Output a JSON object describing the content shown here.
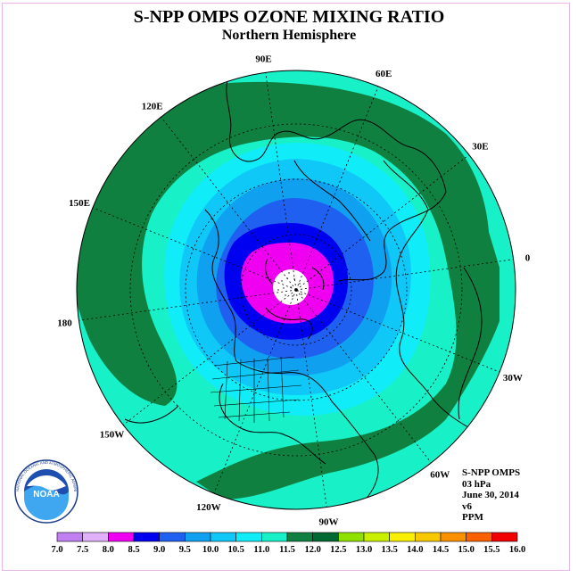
{
  "title": "S-NPP OMPS OZONE MIXING RATIO",
  "subtitle": "Northern Hemisphere",
  "longitude_labels": [
    {
      "text": "90E",
      "lon": 90
    },
    {
      "text": "60E",
      "lon": 60
    },
    {
      "text": "30E",
      "lon": 30
    },
    {
      "text": "0",
      "lon": 0
    },
    {
      "text": "30W",
      "lon": -30
    },
    {
      "text": "60W",
      "lon": -60
    },
    {
      "text": "90W",
      "lon": -90
    },
    {
      "text": "120W",
      "lon": -120
    },
    {
      "text": "150W",
      "lon": -150
    },
    {
      "text": "180",
      "lon": 180
    },
    {
      "text": "150E",
      "lon": 150
    },
    {
      "text": "120E",
      "lon": 120
    }
  ],
  "info": {
    "instrument": "S-NPP OMPS",
    "level": "03 hPa",
    "date": "June 30, 2014",
    "version": "v6",
    "units": "PPM"
  },
  "logo": {
    "text": "NOAA",
    "ring_text": "NATIONAL OCEANIC AND ATMOSPHERIC ADMINISTRATION · U.S. DEPARTMENT OF COMMERCE"
  },
  "colors": {
    "bin_7_0": "#c080f0",
    "bin_7_5": "#e0b0f8",
    "bin_8_0": "#f000f0",
    "bin_8_5": "#0000f0",
    "bin_9_0": "#2060f0",
    "bin_9_5": "#10a0f0",
    "bin_10_0": "#10c8f8",
    "bin_10_5": "#10ecf8",
    "bin_11_0": "#18f0c8",
    "bin_11_5": "#108040",
    "bin_12_0": "#006830",
    "bin_12_5": "#90e000",
    "bin_13_0": "#c8f000",
    "bin_13_5": "#f8f000",
    "bin_14_0": "#f8c800",
    "bin_14_5": "#f89000",
    "bin_15_0": "#f86000",
    "bin_15_5": "#f00000",
    "bin_16_0": "#8b5a3c"
  },
  "color_scale": {
    "ticks": [
      "7.0",
      "7.5",
      "8.0",
      "8.5",
      "9.0",
      "9.5",
      "10.0",
      "10.5",
      "11.0",
      "11.5",
      "12.0",
      "12.5",
      "13.0",
      "13.5",
      "14.0",
      "14.5",
      "15.0",
      "15.5",
      "16.0"
    ],
    "colors": [
      "#c080f0",
      "#e0b0f8",
      "#f000f0",
      "#0000f0",
      "#2060f0",
      "#10a0f0",
      "#10c8f8",
      "#10ecf8",
      "#18f0c8",
      "#108040",
      "#006830",
      "#90e000",
      "#c8f000",
      "#f8f000",
      "#f8c800",
      "#f89000",
      "#f86000",
      "#f00000",
      "#8b5a3c"
    ]
  }
}
